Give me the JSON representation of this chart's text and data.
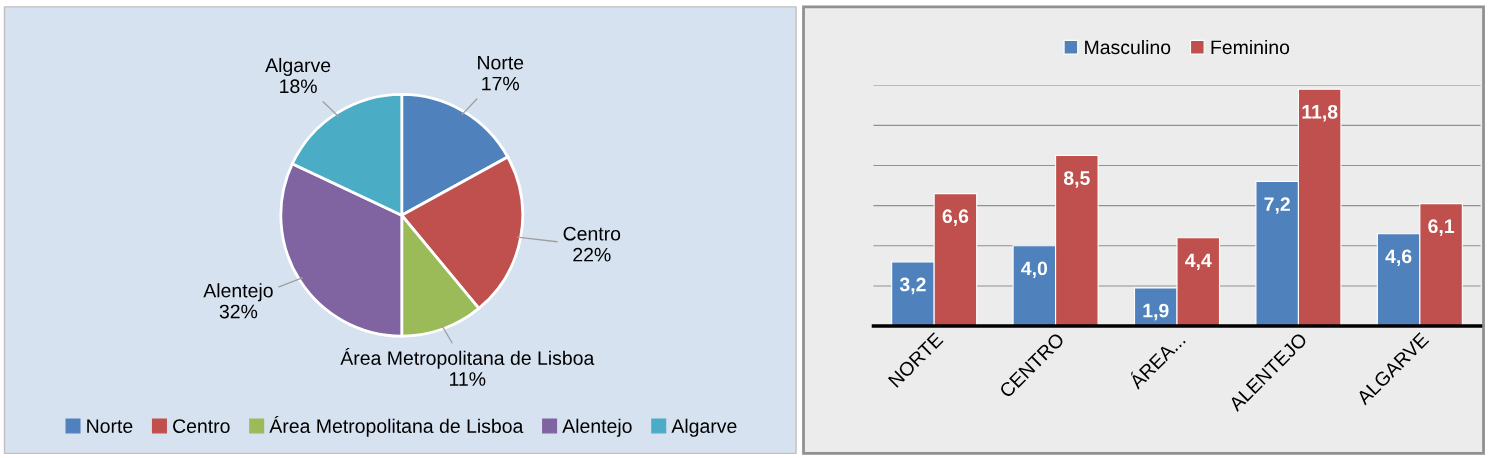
{
  "chart_data": [
    {
      "type": "pie",
      "categories": [
        "Norte",
        "Centro",
        "Área Metropolitana de Lisboa",
        "Alentejo",
        "Algarve"
      ],
      "values": [
        17,
        22,
        11,
        32,
        18
      ],
      "value_labels": [
        "17%",
        "22%",
        "11%",
        "32%",
        "18%"
      ],
      "colors": [
        "#4f81bd",
        "#c0504d",
        "#9bbb59",
        "#8064a2",
        "#4bacc6"
      ],
      "legend": "bottom"
    },
    {
      "type": "bar",
      "categories": [
        "NORTE",
        "CENTRO",
        "ÁREA...",
        "ALENTEJO",
        "ALGARVE"
      ],
      "ylim": [
        0,
        12
      ],
      "yticks": [
        {
          "value": 0,
          "label": null
        },
        {
          "value": 2,
          "label": null
        },
        {
          "value": 4,
          "label": null
        },
        {
          "value": 6,
          "label": null
        },
        {
          "value": 8,
          "label": null
        },
        {
          "value": 10,
          "label": null
        },
        {
          "value": 12,
          "label": null
        }
      ],
      "grid": "y",
      "legend": "top",
      "tick_labels": "x",
      "series": [
        {
          "name": "Masculino",
          "color": "#4f81bd",
          "values": [
            3.2,
            4.0,
            1.9,
            7.2,
            4.6
          ],
          "value_labels": [
            "3,2",
            "4,0",
            "1,9",
            "7,2",
            "4,6"
          ]
        },
        {
          "name": "Feminino",
          "color": "#c0504d",
          "values": [
            6.6,
            8.5,
            4.4,
            11.8,
            6.1
          ],
          "value_labels": [
            "6,6",
            "8,5",
            "4,4",
            "11,8",
            "6,1"
          ]
        }
      ]
    }
  ]
}
